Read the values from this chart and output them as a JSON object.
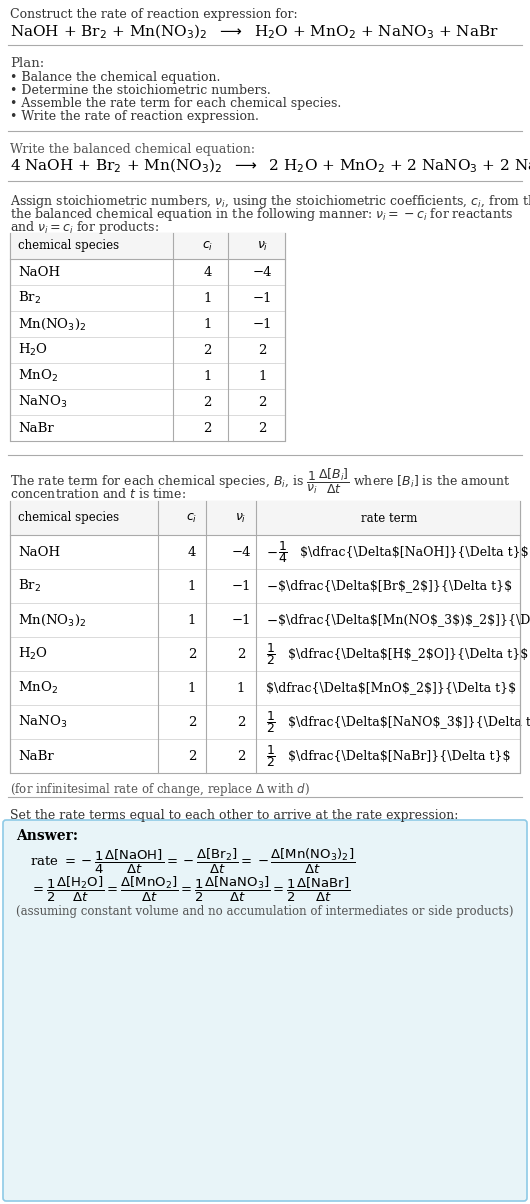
{
  "title_line1": "Construct the rate of reaction expression for:",
  "plan_header": "Plan:",
  "plan_items": [
    "• Balance the chemical equation.",
    "• Determine the stoichiometric numbers.",
    "• Assemble the rate term for each chemical species.",
    "• Write the rate of reaction expression."
  ],
  "balanced_header": "Write the balanced chemical equation:",
  "stoich_intro_1": "Assign stoichiometric numbers, ",
  "stoich_intro_2": ", using the stoichiometric coefficients, ",
  "stoich_intro_3": ", from the",
  "stoich_intro_4": "the balanced chemical equation in the following manner: ",
  "stoich_intro_5": " = −",
  "stoich_intro_6": " for reactants",
  "stoich_intro_7": "and ",
  "stoich_intro_8": " = ",
  "stoich_intro_9": " for products:",
  "table1_data": [
    [
      "NaOH",
      "4",
      "−4"
    ],
    [
      "Br_2",
      "1",
      "−1"
    ],
    [
      "Mn(NO_3)_2",
      "1",
      "−1"
    ],
    [
      "H_2O",
      "2",
      "2"
    ],
    [
      "MnO_2",
      "1",
      "1"
    ],
    [
      "NaNO_3",
      "2",
      "2"
    ],
    [
      "NaBr",
      "2",
      "2"
    ]
  ],
  "rate_intro1": "The rate term for each chemical species, B",
  "rate_intro2": ", is ",
  "rate_intro3": " where [B",
  "rate_intro4": "] is the amount",
  "rate_intro5": "concentration and ",
  "rate_intro6": " is time:",
  "set_equal_text": "Set the rate terms equal to each other to arrive at the rate expression:",
  "infinitesimal_note": "(for infinitesimal rate of change, replace Δ with ",
  "answer_label": "Answer:",
  "assuming_note": "(assuming constant volume and no accumulation of intermediates or side products)",
  "bg_color": "#ffffff",
  "answer_bg": "#e8f4f8",
  "answer_border": "#8ecae6",
  "separator_color": "#888888",
  "table_border_color": "#aaaaaa",
  "gray_color": "#666666"
}
